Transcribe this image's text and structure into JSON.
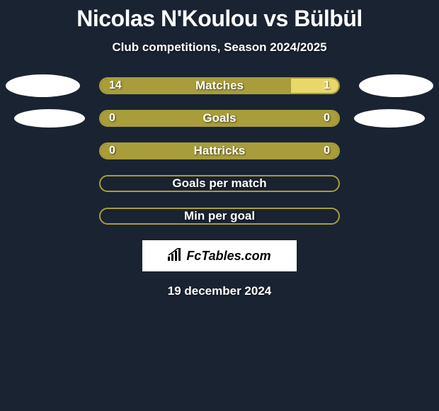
{
  "title": "Nicolas N'Koulou vs Bülbül",
  "subtitle": "Club competitions, Season 2024/2025",
  "date": "19 december 2024",
  "brand": "FcTables.com",
  "colors": {
    "background": "#1a2332",
    "border": "#a89d3a",
    "fill_left": "#a89d3a",
    "fill_right": "#e8d86a",
    "text": "#ffffff",
    "brand_bg": "#ffffff",
    "brand_text": "#000000"
  },
  "stats": [
    {
      "label": "Matches",
      "left_value": "14",
      "right_value": "1",
      "left_pct": 80,
      "right_pct": 20,
      "show_avatars": true,
      "avatar_size": "large"
    },
    {
      "label": "Goals",
      "left_value": "0",
      "right_value": "0",
      "left_pct": 100,
      "right_pct": 0,
      "show_avatars": true,
      "avatar_size": "small"
    },
    {
      "label": "Hattricks",
      "left_value": "0",
      "right_value": "0",
      "left_pct": 100,
      "right_pct": 0,
      "show_avatars": false
    },
    {
      "label": "Goals per match",
      "left_value": "",
      "right_value": "",
      "left_pct": 0,
      "right_pct": 0,
      "show_avatars": false,
      "empty": true
    },
    {
      "label": "Min per goal",
      "left_value": "",
      "right_value": "",
      "left_pct": 0,
      "right_pct": 0,
      "show_avatars": false,
      "empty": true
    }
  ]
}
